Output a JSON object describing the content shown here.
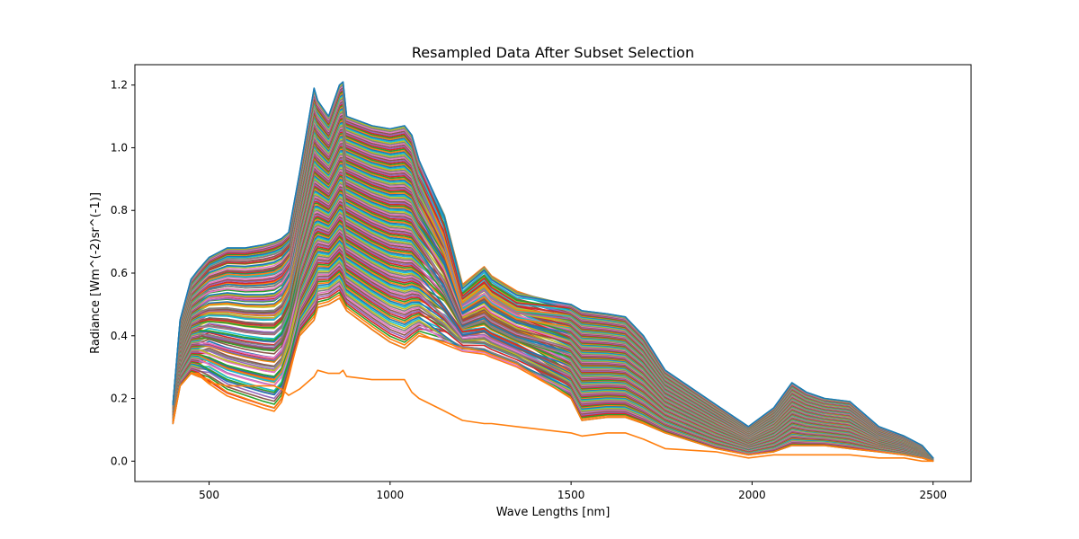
{
  "chart_data": {
    "type": "line",
    "title": "Resampled Data After Subset Selection",
    "xlabel": "Wave Lengths [nm]",
    "ylabel": "Radiance [Wm^(-2)sr^(-1)]",
    "xlim": [
      295,
      2605
    ],
    "ylim": [
      -0.065,
      1.265
    ],
    "xticks": [
      500,
      1000,
      1500,
      2000,
      2500
    ],
    "xtick_labels": [
      "500",
      "1000",
      "1500",
      "2000",
      "2500"
    ],
    "yticks": [
      0.0,
      0.2,
      0.4,
      0.6,
      0.8,
      1.0,
      1.2
    ],
    "ytick_labels": [
      "0.0",
      "0.2",
      "0.4",
      "0.6",
      "0.8",
      "1.0",
      "1.2"
    ],
    "grid": false,
    "palette": [
      "#1f77b4",
      "#ff7f0e",
      "#2ca02c",
      "#d62728",
      "#9467bd",
      "#8c564b",
      "#e377c2",
      "#7f7f7f",
      "#bcbd22",
      "#17becf"
    ],
    "x": [
      400,
      420,
      450,
      470,
      500,
      550,
      600,
      650,
      680,
      700,
      720,
      750,
      790,
      800,
      830,
      860,
      870,
      880,
      950,
      1000,
      1040,
      1060,
      1080,
      1150,
      1200,
      1260,
      1280,
      1350,
      1500,
      1530,
      1600,
      1650,
      1700,
      1760,
      1900,
      1990,
      2060,
      2110,
      2150,
      2200,
      2270,
      2350,
      2420,
      2470,
      2500
    ],
    "series_count": 140,
    "series": [
      {
        "name": "",
        "values": [
          0.18,
          0.45,
          0.58,
          0.61,
          0.65,
          0.68,
          0.68,
          0.69,
          0.7,
          0.71,
          0.73,
          0.92,
          1.19,
          1.15,
          1.1,
          1.2,
          1.21,
          1.1,
          1.07,
          1.06,
          1.07,
          1.04,
          0.96,
          0.78,
          0.55,
          0.61,
          0.58,
          0.53,
          0.5,
          0.48,
          0.47,
          0.46,
          0.4,
          0.29,
          0.18,
          0.11,
          0.17,
          0.25,
          0.22,
          0.2,
          0.19,
          0.11,
          0.08,
          0.05,
          0.01
        ]
      },
      {
        "name": "",
        "values": [
          0.12,
          0.24,
          0.28,
          0.27,
          0.26,
          0.22,
          0.2,
          0.18,
          0.17,
          0.2,
          0.28,
          0.4,
          0.45,
          0.49,
          0.5,
          0.52,
          0.5,
          0.48,
          0.42,
          0.38,
          0.36,
          0.38,
          0.4,
          0.38,
          0.36,
          0.35,
          0.34,
          0.31,
          0.2,
          0.13,
          0.14,
          0.14,
          0.12,
          0.09,
          0.04,
          0.02,
          0.03,
          0.05,
          0.05,
          0.05,
          0.04,
          0.03,
          0.02,
          0.01,
          0.0
        ]
      },
      {
        "name": "",
        "values": [
          0.13,
          0.24,
          0.28,
          0.28,
          0.25,
          0.24,
          0.24,
          0.24,
          0.24,
          0.23,
          0.21,
          0.23,
          0.27,
          0.29,
          0.28,
          0.28,
          0.29,
          0.27,
          0.26,
          0.26,
          0.26,
          0.22,
          0.2,
          0.16,
          0.13,
          0.12,
          0.12,
          0.11,
          0.09,
          0.08,
          0.09,
          0.09,
          0.07,
          0.04,
          0.03,
          0.01,
          0.02,
          0.02,
          0.02,
          0.02,
          0.02,
          0.01,
          0.01,
          0.0,
          0.0
        ]
      }
    ]
  }
}
